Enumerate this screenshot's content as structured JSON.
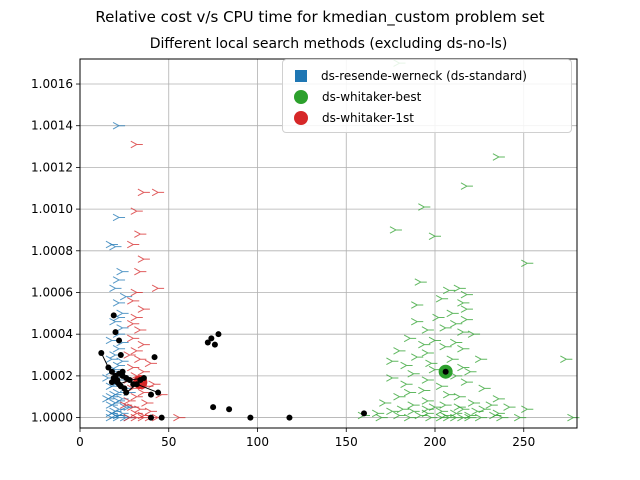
{
  "chart_data": {
    "type": "scatter",
    "title": "Relative cost v/s CPU time for kmedian_custom problem set",
    "subtitle": "Different local search methods (excluding ds-no-ls)",
    "xlabel": "",
    "ylabel": "",
    "xlim": [
      0,
      280
    ],
    "ylim": [
      0.99995,
      1.00172
    ],
    "xticks": [
      "0",
      "50",
      "100",
      "150",
      "200",
      "250"
    ],
    "yticks": [
      "1.0000",
      "1.0002",
      "1.0004",
      "1.0006",
      "1.0008",
      "1.0010",
      "1.0012",
      "1.0014",
      "1.0016"
    ],
    "grid": true,
    "legend_position": "top-right",
    "colors": {
      "resende": "#1f77b4",
      "best": "#2ca02c",
      "first": "#d62728",
      "black": "#000000"
    },
    "legend": [
      {
        "label": "ds-resende-werneck (ds-standard)",
        "marker": "square",
        "color": "#1f77b4"
      },
      {
        "label": "ds-whitaker-best",
        "marker": "circle",
        "color": "#2ca02c"
      },
      {
        "label": "ds-whitaker-1st",
        "marker": "circle",
        "color": "#d62728"
      }
    ],
    "series": [
      {
        "key": "resende",
        "marker": "tri",
        "points": [
          [
            22,
            1.0014
          ],
          [
            22,
            1.00096
          ],
          [
            18,
            1.00083
          ],
          [
            20,
            1.00082
          ],
          [
            24,
            1.0007
          ],
          [
            22,
            1.00066
          ],
          [
            20,
            1.00062
          ],
          [
            26,
            1.00058
          ],
          [
            22,
            1.00055
          ],
          [
            24,
            1.0005
          ],
          [
            22,
            1.00048
          ],
          [
            20,
            1.00046
          ],
          [
            24,
            1.00043
          ],
          [
            22,
            1.0004
          ],
          [
            18,
            1.00037
          ],
          [
            24,
            1.00036
          ],
          [
            22,
            1.00033
          ],
          [
            20,
            1.0003
          ],
          [
            18,
            1.00028
          ],
          [
            24,
            1.00027
          ],
          [
            22,
            1.00025
          ],
          [
            20,
            1.00023
          ],
          [
            18,
            1.00022
          ],
          [
            24,
            1.0002
          ],
          [
            22,
            1.00018
          ],
          [
            20,
            1.00016
          ],
          [
            18,
            1.00015
          ],
          [
            26,
            1.00014
          ],
          [
            22,
            1.00012
          ],
          [
            20,
            1.00011
          ],
          [
            18,
            1.0001
          ],
          [
            24,
            1.00009
          ],
          [
            22,
            1.00008
          ],
          [
            20,
            1.00007
          ],
          [
            18,
            1.00006
          ],
          [
            26,
            1.00005
          ],
          [
            22,
            1.00004
          ],
          [
            20,
            1.00003
          ],
          [
            18,
            1.00002
          ],
          [
            24,
            1.00002
          ],
          [
            22,
            1.00001
          ],
          [
            20,
            1.00001
          ],
          [
            18,
            1.0
          ],
          [
            22,
            1.0
          ],
          [
            26,
            1.0
          ],
          [
            28,
            1.0
          ],
          [
            16,
            1.00009
          ],
          [
            16,
            1.00019
          ],
          [
            28,
            1.00012
          ],
          [
            28,
            1.00005
          ]
        ]
      },
      {
        "key": "first",
        "marker": "tri",
        "points": [
          [
            32,
            1.00131
          ],
          [
            36,
            1.00108
          ],
          [
            44,
            1.00108
          ],
          [
            32,
            1.00099
          ],
          [
            34,
            1.00088
          ],
          [
            30,
            1.00083
          ],
          [
            36,
            1.00076
          ],
          [
            34,
            1.0007
          ],
          [
            44,
            1.00062
          ],
          [
            32,
            1.0006
          ],
          [
            30,
            1.00056
          ],
          [
            36,
            1.00052
          ],
          [
            32,
            1.00048
          ],
          [
            30,
            1.00045
          ],
          [
            34,
            1.00042
          ],
          [
            30,
            1.00038
          ],
          [
            36,
            1.00035
          ],
          [
            32,
            1.00032
          ],
          [
            28,
            1.0003
          ],
          [
            34,
            1.00028
          ],
          [
            40,
            1.00026
          ],
          [
            30,
            1.00024
          ],
          [
            36,
            1.00022
          ],
          [
            32,
            1.0002
          ],
          [
            28,
            1.00018
          ],
          [
            34,
            1.00017
          ],
          [
            42,
            1.00016
          ],
          [
            30,
            1.00014
          ],
          [
            36,
            1.00012
          ],
          [
            32,
            1.0001
          ],
          [
            28,
            1.00008
          ],
          [
            38,
            1.00007
          ],
          [
            30,
            1.00005
          ],
          [
            34,
            1.00004
          ],
          [
            40,
            1.00003
          ],
          [
            32,
            1.00002
          ],
          [
            36,
            1.00001
          ],
          [
            28,
            1.0
          ],
          [
            32,
            1.0
          ],
          [
            36,
            1.0
          ],
          [
            40,
            1.0
          ],
          [
            44,
            1.0
          ],
          [
            56,
            1.0
          ],
          [
            46,
            1.00011
          ],
          [
            26,
            1.00006
          ],
          [
            38,
            1.00015
          ]
        ]
      },
      {
        "key": "best",
        "marker": "tri",
        "points": [
          [
            180,
            1.0017
          ],
          [
            236,
            1.00125
          ],
          [
            218,
            1.00111
          ],
          [
            194,
            1.00101
          ],
          [
            178,
            1.0009
          ],
          [
            200,
            1.00087
          ],
          [
            252,
            1.00074
          ],
          [
            192,
            1.00065
          ],
          [
            214,
            1.00062
          ],
          [
            208,
            1.00061
          ],
          [
            218,
            1.00059
          ],
          [
            204,
            1.00057
          ],
          [
            216,
            1.00055
          ],
          [
            190,
            1.00054
          ],
          [
            218,
            1.00052
          ],
          [
            210,
            1.0005
          ],
          [
            202,
            1.00048
          ],
          [
            218,
            1.00047
          ],
          [
            190,
            1.00046
          ],
          [
            212,
            1.00045
          ],
          [
            206,
            1.00043
          ],
          [
            196,
            1.00042
          ],
          [
            216,
            1.00041
          ],
          [
            222,
            1.0004
          ],
          [
            186,
            1.00038
          ],
          [
            200,
            1.00037
          ],
          [
            212,
            1.00036
          ],
          [
            194,
            1.00035
          ],
          [
            206,
            1.00034
          ],
          [
            216,
            1.00033
          ],
          [
            180,
            1.00032
          ],
          [
            196,
            1.00031
          ],
          [
            190,
            1.00029
          ],
          [
            210,
            1.00028
          ],
          [
            226,
            1.00028
          ],
          [
            274,
            1.00028
          ],
          [
            176,
            1.00027
          ],
          [
            198,
            1.00026
          ],
          [
            184,
            1.00025
          ],
          [
            216,
            1.00024
          ],
          [
            200,
            1.00023
          ],
          [
            220,
            1.00022
          ],
          [
            188,
            1.00021
          ],
          [
            212,
            1.0002
          ],
          [
            176,
            1.00019
          ],
          [
            196,
            1.00018
          ],
          [
            218,
            1.00017
          ],
          [
            184,
            1.00016
          ],
          [
            204,
            1.00015
          ],
          [
            228,
            1.00014
          ],
          [
            194,
            1.00013
          ],
          [
            186,
            1.00012
          ],
          [
            208,
            1.00011
          ],
          [
            180,
            1.0001
          ],
          [
            214,
            1.0001
          ],
          [
            236,
            1.00009
          ],
          [
            196,
            1.00008
          ],
          [
            172,
            1.00007
          ],
          [
            222,
            1.00007
          ],
          [
            188,
            1.00006
          ],
          [
            206,
            1.00006
          ],
          [
            232,
            1.00006
          ],
          [
            200,
            1.00005
          ],
          [
            214,
            1.00005
          ],
          [
            242,
            1.00005
          ],
          [
            182,
            1.00004
          ],
          [
            196,
            1.00004
          ],
          [
            216,
            1.00004
          ],
          [
            228,
            1.00004
          ],
          [
            252,
            1.00004
          ],
          [
            176,
            1.00003
          ],
          [
            188,
            1.00003
          ],
          [
            204,
            1.00003
          ],
          [
            224,
            1.00003
          ],
          [
            168,
            1.00002
          ],
          [
            196,
            1.00002
          ],
          [
            212,
            1.00002
          ],
          [
            236,
            1.00002
          ],
          [
            160,
            1.00001
          ],
          [
            180,
            1.00001
          ],
          [
            192,
            1.00001
          ],
          [
            206,
            1.00001
          ],
          [
            220,
            1.00001
          ],
          [
            234,
            1.00001
          ],
          [
            170,
            1.0
          ],
          [
            186,
            1.0
          ],
          [
            198,
            1.0
          ],
          [
            204,
            1.0
          ],
          [
            208,
            1.0
          ],
          [
            212,
            1.0
          ],
          [
            216,
            1.0
          ],
          [
            220,
            1.0
          ],
          [
            226,
            1.0
          ],
          [
            238,
            1.0
          ],
          [
            248,
            1.0
          ],
          [
            278,
            1.0
          ]
        ]
      }
    ],
    "black_points": [
      [
        12,
        1.00031
      ],
      [
        16,
        1.00024
      ],
      [
        18,
        1.00017
      ],
      [
        18,
        1.00022
      ],
      [
        19,
        1.00019
      ],
      [
        19,
        1.00049
      ],
      [
        20,
        1.00041
      ],
      [
        20,
        1.0002
      ],
      [
        21,
        1.00018
      ],
      [
        21,
        1.00017
      ],
      [
        22,
        1.00016
      ],
      [
        22,
        1.00021
      ],
      [
        22,
        1.00037
      ],
      [
        23,
        1.00015
      ],
      [
        23,
        1.0003
      ],
      [
        24,
        1.00022
      ],
      [
        24,
        1.0002
      ],
      [
        25,
        1.00014
      ],
      [
        26,
        1.00012
      ],
      [
        26,
        1.00019
      ],
      [
        28,
        1.00018
      ],
      [
        30,
        1.00016
      ],
      [
        32,
        1.00016
      ],
      [
        34,
        1.00018
      ],
      [
        36,
        1.00019
      ],
      [
        40,
        1.00011
      ],
      [
        42,
        1.00029
      ],
      [
        44,
        1.00012
      ],
      [
        72,
        1.00036
      ],
      [
        74,
        1.00038
      ],
      [
        76,
        1.00035
      ],
      [
        78,
        1.0004
      ],
      [
        75,
        1.00005
      ],
      [
        84,
        1.00004
      ],
      [
        96,
        1.0
      ],
      [
        118,
        1.0
      ],
      [
        46,
        1.0
      ],
      [
        40,
        1.0
      ],
      [
        160,
        1.00002
      ],
      [
        206,
        1.00022
      ]
    ],
    "black_lines": [
      [
        [
          12,
          1.00031
        ],
        [
          16,
          1.00024
        ],
        [
          22,
          1.00016
        ]
      ],
      [
        [
          22,
          1.00016
        ],
        [
          28,
          1.00018
        ],
        [
          36,
          1.00019
        ]
      ],
      [
        [
          26,
          1.00012
        ],
        [
          32,
          1.00016
        ],
        [
          44,
          1.00012
        ]
      ]
    ],
    "highlights": [
      {
        "key": "best",
        "x": 206,
        "y": 1.00022
      },
      {
        "key": "first",
        "x": 34,
        "y": 1.00017
      }
    ]
  }
}
